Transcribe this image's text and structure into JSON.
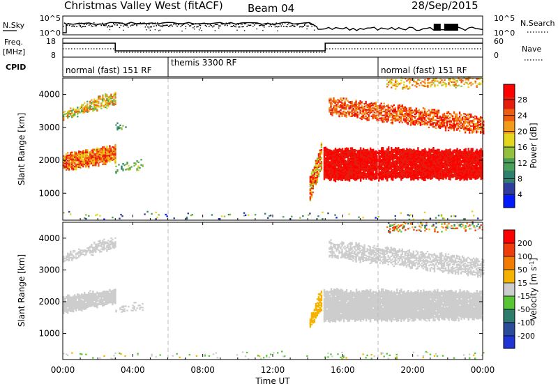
{
  "title": "Christmas Valley West (fitACF)",
  "beam": "Beam 04",
  "date": "28/Sep/2015",
  "status_panel": {
    "left_label": "N.Sky",
    "left_ticks": [
      "10^5",
      "10^0"
    ],
    "right_label": "N.Search",
    "right_ticks": [
      "10^5",
      "10^0"
    ]
  },
  "freq_panel": {
    "left_label_1": "Freq.",
    "left_label_2": "[MHz]",
    "left_ticks": [
      "18",
      "8"
    ],
    "right_label": "Nave",
    "right_ticks": [
      "60",
      "0"
    ]
  },
  "cpid": {
    "label": "CPID",
    "segments": [
      {
        "label": "normal (fast) 151 RF",
        "start_h": 0,
        "end_h": 6
      },
      {
        "label": "themis 3300 RF",
        "start_h": 6,
        "end_h": 18
      },
      {
        "label": "normal (fast) 151 RF",
        "start_h": 18,
        "end_h": 24
      }
    ]
  },
  "x_axis": {
    "label": "Time UT",
    "ticks": [
      "00:00",
      "04:00",
      "08:00",
      "12:00",
      "16:00",
      "20:00",
      "00:00"
    ],
    "range_h": [
      0,
      24
    ]
  },
  "colorbars": {
    "power": {
      "label": "Power [dB]",
      "ticks": [
        "28",
        "24",
        "20",
        "16",
        "12",
        "8",
        "4"
      ],
      "colors": [
        "#0019ff",
        "#2e3d9e",
        "#2e7f6e",
        "#4aa05a",
        "#93c13d",
        "#e6d51f",
        "#f29b1a",
        "#ee5d10",
        "#e51c0e",
        "#ff0000"
      ]
    },
    "velocity": {
      "label": "Velocity [m s",
      "label_sup": "-1",
      "label_end": "]",
      "ticks": [
        "200",
        "100",
        "50",
        "15",
        "-15",
        "-50",
        "-100",
        "-200"
      ],
      "colors": [
        "#1f35d6",
        "#2a4a9a",
        "#2e7d6c",
        "#59c534",
        "#cdcdcd",
        "#f5b300",
        "#f27b00",
        "#f03c0a",
        "#ff0000"
      ]
    }
  },
  "chart_data": [
    {
      "type": "heatmap",
      "panel": "power",
      "xlabel": "Time UT",
      "ylabel": "Slant Range [km]",
      "x_range": [
        0,
        24
      ],
      "y_range": [
        180,
        4500
      ],
      "yticks": [
        1000,
        2000,
        3000,
        4000
      ],
      "scale": {
        "min": 0,
        "max": 30,
        "unit": "dB"
      },
      "bands": [
        {
          "t0": 0.0,
          "t1": 3.0,
          "r0a": 1700,
          "r1a": 2150,
          "r0b": 1950,
          "r1b": 2450,
          "v0": 16,
          "v1": 27,
          "density": 0.95
        },
        {
          "t0": 0.0,
          "t1": 3.0,
          "r0a": 3250,
          "r1a": 3450,
          "r0b": 3700,
          "r1b": 4100,
          "v0": 10,
          "v1": 24,
          "density": 0.7
        },
        {
          "t0": 3.0,
          "t1": 4.6,
          "r0a": 1650,
          "r1a": 1800,
          "r0b": 1750,
          "r1b": 2000,
          "v0": 8,
          "v1": 16,
          "density": 0.45
        },
        {
          "t0": 3.0,
          "t1": 3.6,
          "r0a": 2950,
          "r1a": 3100,
          "r0b": 2950,
          "r1b": 3100,
          "v0": 6,
          "v1": 14,
          "density": 0.3
        },
        {
          "t0": 14.1,
          "t1": 14.8,
          "r0a": 800,
          "r1a": 1500,
          "r0b": 1800,
          "r1b": 2550,
          "v0": 12,
          "v1": 28,
          "density": 0.8
        },
        {
          "t0": 14.9,
          "t1": 24.0,
          "r0a": 1400,
          "r1a": 2350,
          "r0b": 1450,
          "r1b": 2300,
          "v0": 24,
          "v1": 30,
          "density": 0.98
        },
        {
          "t0": 15.2,
          "t1": 24.0,
          "r0a": 3400,
          "r1a": 3900,
          "r0b": 2800,
          "r1b": 3300,
          "v0": 18,
          "v1": 28,
          "density": 0.7
        },
        {
          "t0": 18.5,
          "t1": 24.0,
          "r0a": 4200,
          "r1a": 4500,
          "r0b": 4250,
          "r1b": 4500,
          "v0": 14,
          "v1": 24,
          "density": 0.35
        },
        {
          "t0": 0.0,
          "t1": 24.0,
          "r0a": 180,
          "r1a": 380,
          "r0b": 180,
          "r1b": 380,
          "v0": 2,
          "v1": 18,
          "density": 0.07
        }
      ]
    },
    {
      "type": "heatmap",
      "panel": "velocity",
      "xlabel": "Time UT",
      "ylabel": "Slant Range [km]",
      "x_range": [
        0,
        24
      ],
      "y_range": [
        180,
        4500
      ],
      "yticks": [
        1000,
        2000,
        3000,
        4000
      ],
      "scale": {
        "min": -250,
        "max": 250,
        "unit": "m s-1"
      },
      "bands": [
        {
          "t0": 0.0,
          "t1": 3.0,
          "r0a": 1650,
          "r1a": 2150,
          "r0b": 1950,
          "r1b": 2400,
          "v0": -10,
          "v1": 10,
          "density": 0.95
        },
        {
          "t0": 0.0,
          "t1": 3.0,
          "r0a": 3250,
          "r1a": 3450,
          "r0b": 3700,
          "r1b": 4050,
          "v0": -12,
          "v1": 12,
          "density": 0.7
        },
        {
          "t0": 3.0,
          "t1": 4.6,
          "r0a": 1650,
          "r1a": 1800,
          "r0b": 1750,
          "r1b": 1950,
          "v0": -10,
          "v1": 10,
          "density": 0.45
        },
        {
          "t0": 14.1,
          "t1": 14.8,
          "r0a": 1100,
          "r1a": 1500,
          "r0b": 1800,
          "r1b": 2500,
          "v0": 30,
          "v1": 60,
          "density": 0.8
        },
        {
          "t0": 14.9,
          "t1": 24.0,
          "r0a": 1400,
          "r1a": 2350,
          "r0b": 1450,
          "r1b": 2300,
          "v0": -12,
          "v1": 12,
          "density": 0.98
        },
        {
          "t0": 15.2,
          "t1": 24.0,
          "r0a": 3400,
          "r1a": 3900,
          "r0b": 2800,
          "r1b": 3300,
          "v0": -12,
          "v1": 12,
          "density": 0.65
        },
        {
          "t0": 18.5,
          "t1": 24.0,
          "r0a": 4200,
          "r1a": 4500,
          "r0b": 4250,
          "r1b": 4500,
          "v0": -150,
          "v1": 200,
          "density": 0.25
        },
        {
          "t0": 0.0,
          "t1": 24.0,
          "r0a": 180,
          "r1a": 380,
          "r0b": 180,
          "r1b": 380,
          "v0": -80,
          "v1": 40,
          "density": 0.06
        }
      ]
    }
  ]
}
